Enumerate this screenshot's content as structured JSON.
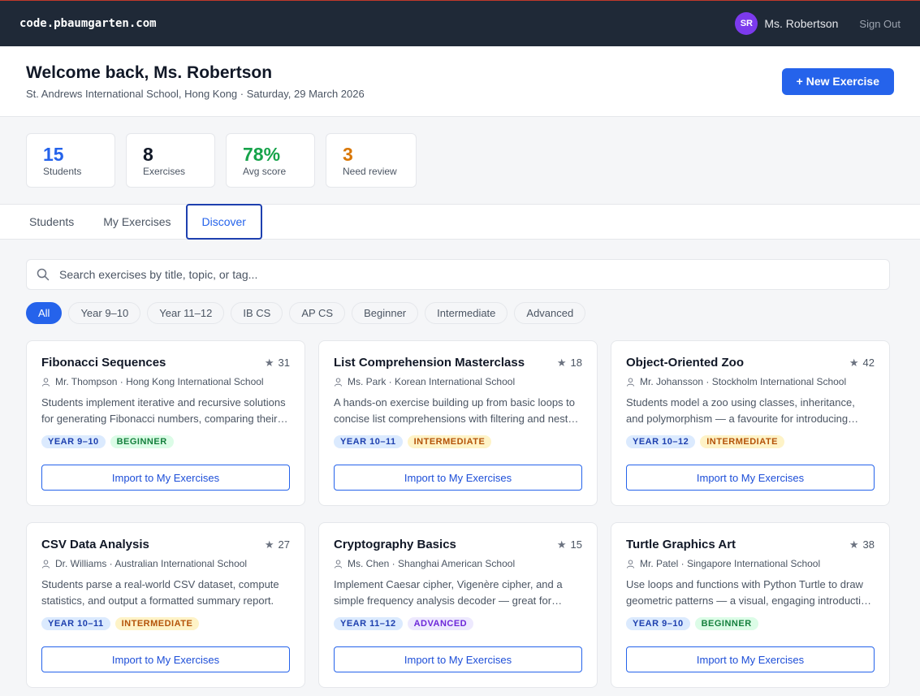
{
  "topbar": {
    "logo": "code.pbaumgarten.com",
    "avatar_initials": "SR",
    "user_name": "Ms. Robertson",
    "signout": "Sign Out"
  },
  "header": {
    "welcome": "Welcome back, Ms. Robertson",
    "subtitle": "St. Andrews International School, Hong Kong · Saturday, 29 March 2026",
    "new_exercise": "+ New Exercise"
  },
  "stats": [
    {
      "value": "15",
      "label": "Students",
      "color": "#2563eb"
    },
    {
      "value": "8",
      "label": "Exercises",
      "color": "#111827"
    },
    {
      "value": "78%",
      "label": "Avg score",
      "color": "#16a34a"
    },
    {
      "value": "3",
      "label": "Need review",
      "color": "#d97706"
    }
  ],
  "tabs": [
    "Students",
    "My Exercises",
    "Discover"
  ],
  "active_tab": "Discover",
  "search": {
    "placeholder": "Search exercises by title, topic, or tag..."
  },
  "filters": [
    "All",
    "Year 9–10",
    "Year 11–12",
    "IB CS",
    "AP CS",
    "Beginner",
    "Intermediate",
    "Advanced"
  ],
  "active_filter": "All",
  "import_label": "Import to My Exercises",
  "cards": [
    {
      "title": "Fibonacci Sequences",
      "stars": "31",
      "author": "Mr. Thompson · Hong Kong International School",
      "desc": "Students implement iterative and recursive solutions for generating Fibonacci numbers, comparing their performance and exploring memoisation.",
      "year": "YEAR 9–10",
      "level": "BEGINNER",
      "level_class": "beginner"
    },
    {
      "title": "List Comprehension Masterclass",
      "stars": "18",
      "author": "Ms. Park · Korean International School",
      "desc": "A hands-on exercise building up from basic loops to concise list comprehensions with filtering and nested iteration.",
      "year": "YEAR 10–11",
      "level": "INTERMEDIATE",
      "level_class": "intermediate"
    },
    {
      "title": "Object-Oriented Zoo",
      "stars": "42",
      "author": "Mr. Johansson · Stockholm International School",
      "desc": "Students model a zoo using classes, inheritance, and polymorphism — a favourite for introducing object-oriented design.",
      "year": "YEAR 10–12",
      "level": "INTERMEDIATE",
      "level_class": "intermediate"
    },
    {
      "title": "CSV Data Analysis",
      "stars": "27",
      "author": "Dr. Williams · Australian International School",
      "desc": "Students parse a real-world CSV dataset, compute statistics, and output a formatted summary report.",
      "year": "YEAR 10–11",
      "level": "INTERMEDIATE",
      "level_class": "intermediate"
    },
    {
      "title": "Cryptography Basics",
      "stars": "15",
      "author": "Ms. Chen · Shanghai American School",
      "desc": "Implement Caesar cipher, Vigenère cipher, and a simple frequency analysis decoder — great for engaging problem solvers.",
      "year": "YEAR 11–12",
      "level": "ADVANCED",
      "level_class": "advanced"
    },
    {
      "title": "Turtle Graphics Art",
      "stars": "38",
      "author": "Mr. Patel · Singapore International School",
      "desc": "Use loops and functions with Python Turtle to draw geometric patterns — a visual, engaging introduction to programming.",
      "year": "YEAR 9–10",
      "level": "BEGINNER",
      "level_class": "beginner"
    }
  ]
}
